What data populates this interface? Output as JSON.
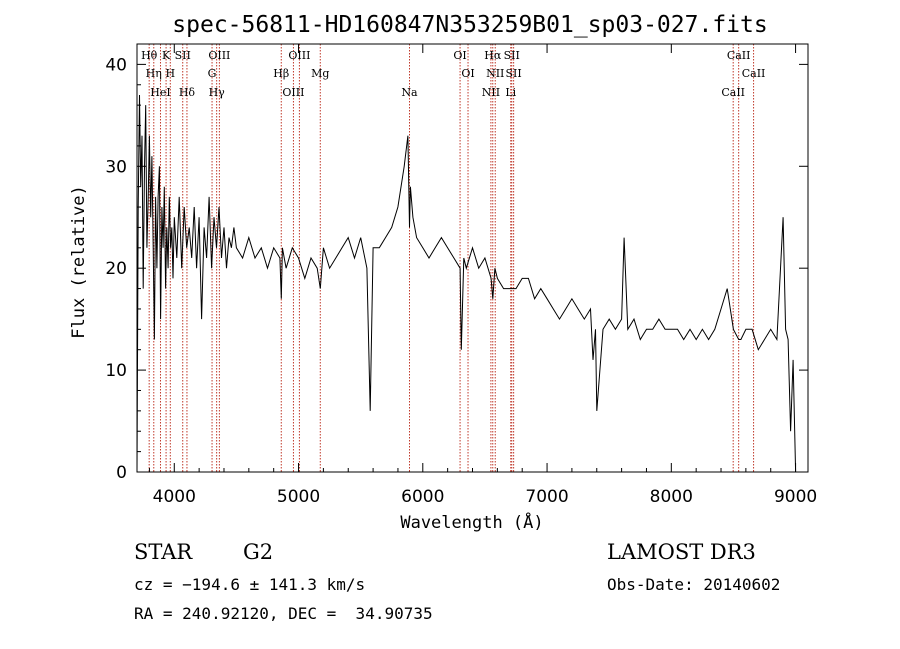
{
  "chart_data": {
    "type": "line",
    "title": "spec-56811-HD160847N353259B01_sp03-027.fits",
    "xlabel": "Wavelength (Å)",
    "ylabel": "Flux (relative)",
    "xlim": [
      3700,
      9100
    ],
    "ylim": [
      0,
      42
    ],
    "xticks": [
      4000,
      5000,
      6000,
      7000,
      8000,
      9000
    ],
    "yticks": [
      0,
      10,
      20,
      30,
      40
    ],
    "grid": false,
    "line_color": "#000000",
    "marker_color": "#c0392b",
    "series": [
      {
        "x": [
          3700,
          3710,
          3720,
          3730,
          3740,
          3750,
          3760,
          3770,
          3780,
          3790,
          3800,
          3810,
          3820,
          3830,
          3840,
          3850,
          3860,
          3870,
          3880,
          3890,
          3900,
          3910,
          3920,
          3930,
          3940,
          3950,
          3960,
          3970,
          3980,
          3990,
          4000,
          4020,
          4040,
          4060,
          4080,
          4100,
          4120,
          4140,
          4160,
          4180,
          4200,
          4220,
          4240,
          4260,
          4280,
          4300,
          4320,
          4340,
          4360,
          4380,
          4400,
          4420,
          4440,
          4460,
          4480,
          4500,
          4550,
          4600,
          4650,
          4700,
          4750,
          4800,
          4850,
          4861,
          4870,
          4900,
          4950,
          5000,
          5050,
          5100,
          5150,
          5175,
          5200,
          5250,
          5300,
          5350,
          5400,
          5450,
          5500,
          5550,
          5577,
          5600,
          5650,
          5700,
          5750,
          5800,
          5850,
          5880,
          5893,
          5900,
          5920,
          5950,
          6000,
          6050,
          6100,
          6150,
          6200,
          6250,
          6300,
          6310,
          6330,
          6350,
          6400,
          6450,
          6500,
          6550,
          6563,
          6580,
          6600,
          6650,
          6700,
          6750,
          6800,
          6850,
          6900,
          6950,
          7000,
          7050,
          7100,
          7150,
          7200,
          7250,
          7300,
          7350,
          7370,
          7390,
          7400,
          7450,
          7500,
          7550,
          7600,
          7620,
          7650,
          7700,
          7750,
          7800,
          7850,
          7900,
          7950,
          8000,
          8050,
          8100,
          8150,
          8200,
          8250,
          8300,
          8350,
          8400,
          8450,
          8500,
          8542,
          8560,
          8600,
          8650,
          8700,
          8750,
          8800,
          8850,
          8900,
          8920,
          8940,
          8960,
          8980,
          9000
        ],
        "values": [
          0,
          26,
          37,
          28,
          33,
          18,
          30,
          36,
          22,
          27,
          33,
          25,
          31,
          22,
          13,
          27,
          20,
          27,
          30,
          15,
          26,
          22,
          28,
          18,
          24,
          20,
          27,
          22,
          24,
          19,
          25,
          21,
          27,
          20,
          26,
          22,
          24,
          21,
          26,
          20,
          25,
          15,
          24,
          21,
          27,
          20,
          25,
          22,
          26,
          21,
          24,
          20,
          23,
          22,
          24,
          22,
          21,
          23,
          21,
          22,
          20,
          22,
          21,
          17,
          22,
          20,
          22,
          21,
          19,
          21,
          20,
          18,
          22,
          20,
          21,
          22,
          23,
          21,
          23,
          20,
          6,
          22,
          22,
          23,
          24,
          26,
          30,
          33,
          24,
          28,
          25,
          23,
          22,
          21,
          22,
          23,
          22,
          21,
          20,
          12,
          21,
          20,
          22,
          20,
          21,
          19,
          17,
          20,
          19,
          18,
          18,
          18,
          19,
          19,
          17,
          18,
          17,
          16,
          15,
          16,
          17,
          16,
          15,
          16,
          11,
          14,
          6,
          14,
          15,
          14,
          15,
          23,
          14,
          15,
          13,
          14,
          14,
          15,
          14,
          14,
          14,
          13,
          14,
          13,
          14,
          13,
          14,
          16,
          18,
          14,
          13,
          13,
          14,
          14,
          12,
          13,
          14,
          13,
          25,
          14,
          13,
          4,
          11,
          0
        ]
      }
    ],
    "lines": [
      {
        "label": "Hθ",
        "x": 3798
      },
      {
        "label": "Hη",
        "x": 3835
      },
      {
        "label": "HeI",
        "x": 3889
      },
      {
        "label": "K",
        "x": 3934
      },
      {
        "label": "H",
        "x": 3968
      },
      {
        "label": "Hδ",
        "x": 4102
      },
      {
        "label": "SII",
        "x": 4068
      },
      {
        "label": "G",
        "x": 4304
      },
      {
        "label": "Hγ",
        "x": 4341
      },
      {
        "label": "OIII",
        "x": 4363
      },
      {
        "label": "Hβ",
        "x": 4861
      },
      {
        "label": "OIII",
        "x": 4959
      },
      {
        "label": "OIII",
        "x": 5007
      },
      {
        "label": "Mg",
        "x": 5175
      },
      {
        "label": "Na",
        "x": 5893
      },
      {
        "label": "OI",
        "x": 6300
      },
      {
        "label": "OI",
        "x": 6364
      },
      {
        "label": "NII",
        "x": 6548
      },
      {
        "label": "Hα",
        "x": 6563
      },
      {
        "label": "NII",
        "x": 6583
      },
      {
        "label": "Li",
        "x": 6708
      },
      {
        "label": "SII",
        "x": 6716
      },
      {
        "label": "SII",
        "x": 6731
      },
      {
        "label": "CaII",
        "x": 8498
      },
      {
        "label": "CaII",
        "x": 8542
      },
      {
        "label": "CaII",
        "x": 8662
      }
    ]
  },
  "info": {
    "object_class": "STAR",
    "subclass": "G2",
    "survey": "LAMOST DR3",
    "redshift": "cz = −194.6 ± 141.3 km/s",
    "obs_date": "Obs-Date: 20140602",
    "coords": "RA = 240.92120, DEC =  34.90735"
  }
}
